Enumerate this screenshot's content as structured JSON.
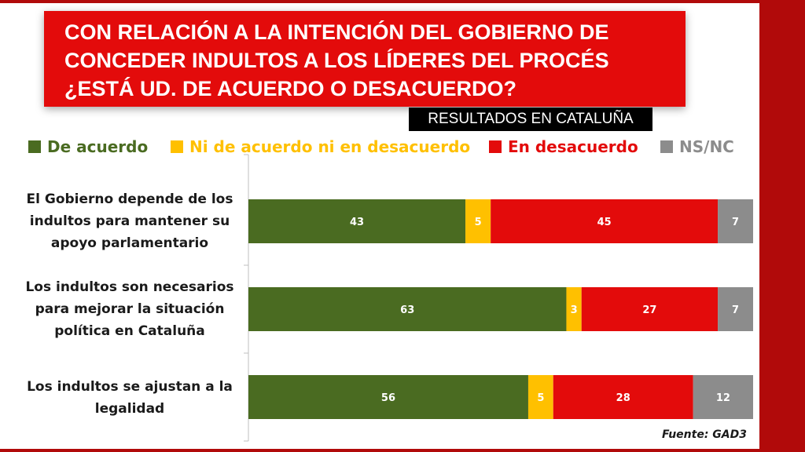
{
  "title": "CON RELACIÓN A LA INTENCIÓN DEL GOBIERNO DE\nCONCEDER INDULTOS  A LOS LÍDERES DEL PROCÉS\n¿ESTÁ UD. DE ACUERDO O DESACUERDO?",
  "subtitle": "RESULTADOS EN CATALUÑA",
  "source": "Fuente: GAD3",
  "colors": {
    "brand_red": "#e30b0b",
    "side_band": "#b10a0a",
    "de_acuerdo": "#4a6b21",
    "ni": "#ffc000",
    "desacuerdo": "#e30b0b",
    "nsnc": "#8c8c8c"
  },
  "legend": [
    {
      "label": "De acuerdo",
      "color": "#4a6b21"
    },
    {
      "label": "Ni de acuerdo ni en desacuerdo",
      "color": "#ffc000"
    },
    {
      "label": "En desacuerdo",
      "color": "#e30b0b"
    },
    {
      "label": "NS/NC",
      "color": "#8c8c8c"
    }
  ],
  "chart_data": {
    "type": "bar",
    "orientation": "horizontal",
    "stacked": true,
    "percent_stacked": true,
    "title": "CON RELACIÓN A LA INTENCIÓN DEL GOBIERNO DE CONCEDER INDULTOS  A LOS LÍDERES DEL PROCÉS ¿ESTÁ UD. DE ACUERDO O DESACUERDO?",
    "subtitle": "RESULTADOS EN CATALUÑA",
    "categories": [
      "El Gobierno depende de los indultos para mantener su apoyo parlamentario",
      "Los indultos son necesarios para mejorar la situación política en Cataluña",
      "Los indultos se ajustan a la legalidad"
    ],
    "series": [
      {
        "name": "De acuerdo",
        "color": "#4a6b21",
        "values": [
          43,
          63,
          56
        ]
      },
      {
        "name": "Ni de acuerdo ni en desacuerdo",
        "color": "#ffc000",
        "values": [
          5,
          3,
          5
        ]
      },
      {
        "name": "En desacuerdo",
        "color": "#e30b0b",
        "values": [
          45,
          27,
          28
        ]
      },
      {
        "name": "NS/NC",
        "color": "#8c8c8c",
        "values": [
          7,
          7,
          12
        ]
      }
    ],
    "legend_position": "top",
    "grid": false,
    "xlabel": "",
    "ylabel": ""
  }
}
